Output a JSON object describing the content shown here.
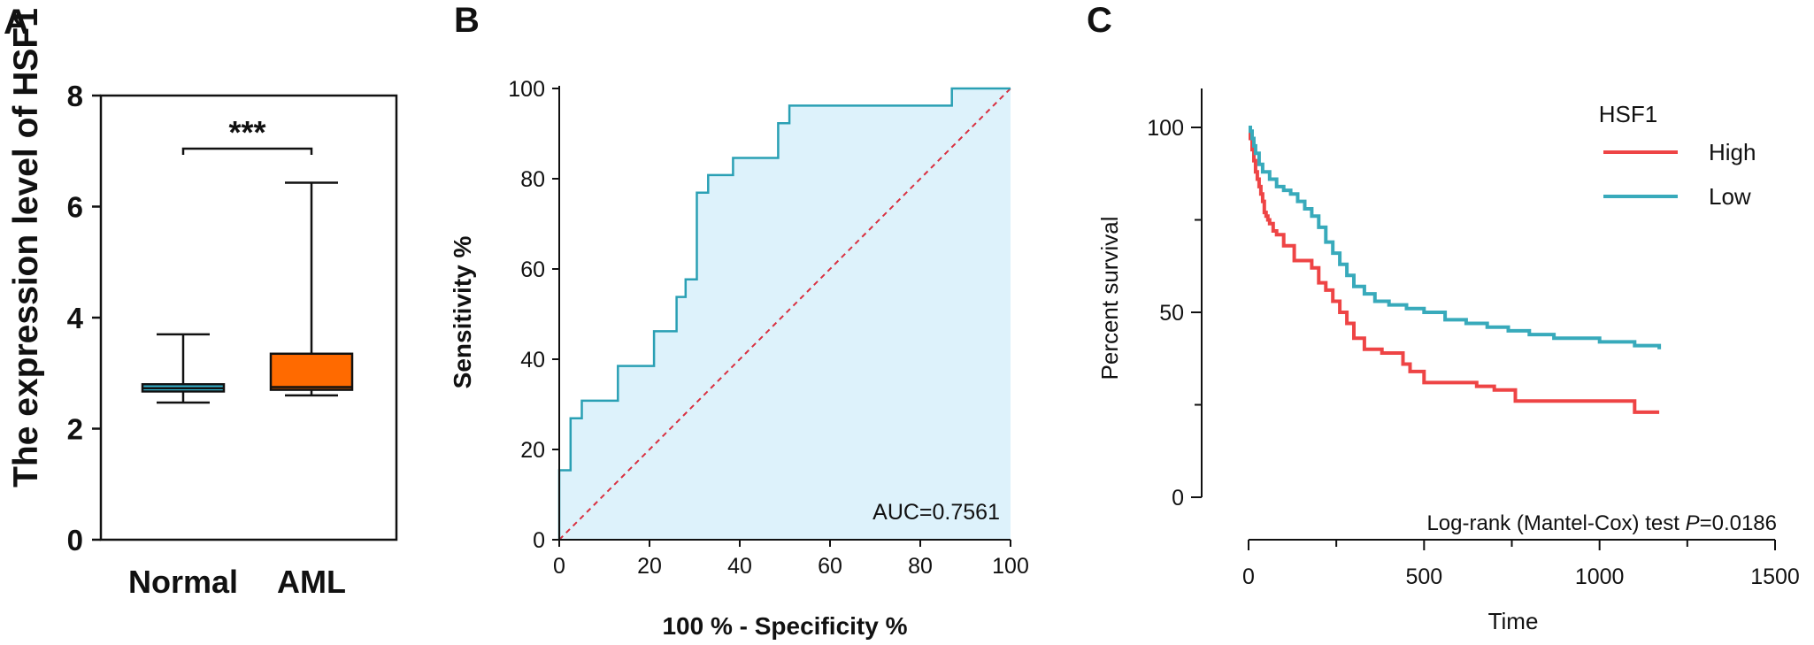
{
  "panels": {
    "a": {
      "letter": "A",
      "significance": "***",
      "chart_data": {
        "type": "box",
        "title": "",
        "ylabel": "The expression level of HSF1",
        "xlabel": "",
        "categories": [
          "Normal",
          "AML"
        ],
        "boxes": [
          {
            "name": "Normal",
            "min": 2.47,
            "q1": 2.67,
            "median": 2.73,
            "q3": 2.8,
            "max": 3.7,
            "color": "#36B4CE"
          },
          {
            "name": "AML",
            "min": 2.6,
            "q1": 2.7,
            "median": 2.75,
            "q3": 3.35,
            "max": 6.43,
            "color": "#FF6A00"
          }
        ],
        "ylim": [
          0,
          8
        ],
        "yticks": [
          0,
          2,
          4,
          6,
          8
        ],
        "annotation": "***"
      }
    },
    "b": {
      "letter": "B",
      "auc_label": "AUC=0.7561",
      "chart_data": {
        "type": "line",
        "title": "",
        "xlabel": "100 % - Specificity %",
        "ylabel": "Sensitivity %",
        "xlim": [
          0,
          100
        ],
        "ylim": [
          0,
          100
        ],
        "xticks": [
          0,
          20,
          40,
          60,
          80,
          100
        ],
        "yticks": [
          0,
          20,
          40,
          60,
          80,
          100
        ],
        "auc": "AUC=0.7561",
        "series": [
          {
            "color": "#2AA0B4",
            "fill": "#DDF2FB",
            "x": [
              0,
              0,
              2.5,
              2.5,
              5,
              5,
              13,
              13,
              21,
              21,
              26,
              26,
              28,
              28,
              30.5,
              30.5,
              33,
              33,
              38.5,
              38.5,
              48.5,
              48.5,
              51,
              51,
              87,
              87,
              100
            ],
            "y": [
              0,
              15.4,
              15.4,
              26.9,
              26.9,
              30.8,
              30.8,
              38.5,
              38.5,
              46.2,
              46.2,
              53.8,
              53.8,
              57.7,
              57.7,
              76.9,
              76.9,
              80.8,
              80.8,
              84.6,
              84.6,
              92.3,
              92.3,
              96.2,
              96.2,
              100,
              100
            ]
          }
        ],
        "reference_line": {
          "x": [
            0,
            100
          ],
          "y": [
            0,
            100
          ],
          "color": "#D93040"
        }
      }
    },
    "c": {
      "letter": "C",
      "test_prefix": "Log-rank (Mantel-Cox) test ",
      "test_p": "P",
      "test_suffix": "=0.0186",
      "legend": {
        "title": "HSF1",
        "entries": [
          {
            "label": "High",
            "color": "#EE4445"
          },
          {
            "label": "Low",
            "color": "#38AABB"
          }
        ]
      },
      "chart_data": {
        "type": "line",
        "title": "",
        "xlabel": "Time",
        "ylabel": "Percent survival",
        "xlim": [
          0,
          1500
        ],
        "ylim": [
          0,
          100
        ],
        "xticks": [
          0,
          500,
          1000,
          1500
        ],
        "yticks": [
          0,
          50,
          100
        ],
        "legend_title": "HSF1",
        "legend_position": "top-right",
        "annotation": "Log-rank (Mantel-Cox) test P=0.0186",
        "series": [
          {
            "name": "High",
            "color": "#EE4445",
            "x": [
              0,
              5,
              10,
              15,
              20,
              25,
              30,
              35,
              40,
              45,
              50,
              55,
              60,
              70,
              80,
              100,
              130,
              160,
              180,
              200,
              220,
              240,
              260,
              280,
              300,
              330,
              380,
              420,
              440,
              460,
              500,
              560,
              650,
              700,
              760,
              850,
              950,
              1050,
              1100,
              1170
            ],
            "y": [
              100,
              97,
              94,
              91,
              88,
              86,
              84,
              82,
              80,
              77,
              76,
              75,
              74,
              72,
              71,
              68,
              64,
              64,
              62,
              58,
              56,
              53,
              50,
              47,
              43,
              40,
              39,
              39,
              36,
              34,
              31,
              31,
              30,
              29,
              26,
              26,
              26,
              26,
              23,
              23
            ]
          },
          {
            "name": "Low",
            "color": "#38AABB",
            "x": [
              0,
              5,
              10,
              15,
              20,
              30,
              40,
              60,
              80,
              100,
              120,
              140,
              160,
              180,
              200,
              220,
              240,
              260,
              280,
              300,
              330,
              360,
              400,
              450,
              500,
              560,
              620,
              680,
              740,
              800,
              870,
              950,
              1000,
              1100,
              1170
            ],
            "y": [
              100,
              99,
              97,
              95,
              93,
              90,
              88,
              86,
              84,
              83,
              82,
              80,
              78,
              76,
              73,
              69,
              66,
              63,
              60,
              57,
              55,
              53,
              52,
              51,
              50,
              48,
              47,
              46,
              45,
              44,
              43,
              43,
              42,
              41,
              40
            ]
          }
        ]
      }
    }
  }
}
